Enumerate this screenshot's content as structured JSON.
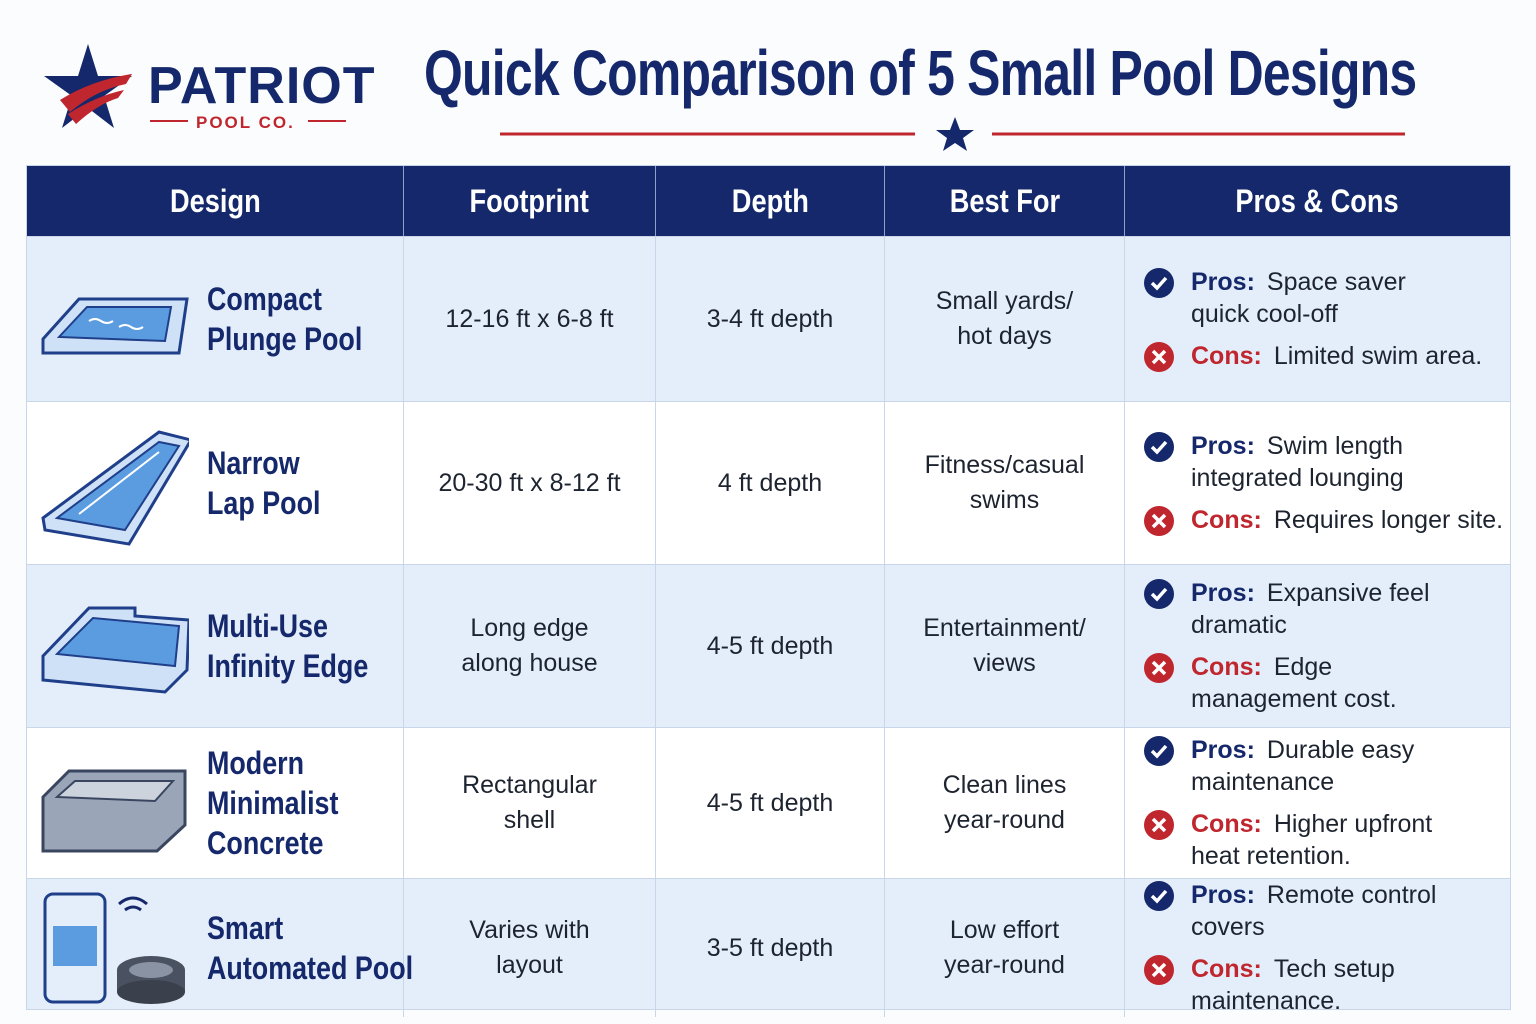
{
  "logo": {
    "name": "PATRIOT",
    "sub": "POOL CO."
  },
  "title": "Quick Comparison of 5 Small Pool Designs",
  "table": {
    "headers": [
      "Design",
      "Footprint",
      "Depth",
      "Best For",
      "Pros & Cons"
    ],
    "pros_label": "Pros:",
    "cons_label": "Cons:",
    "rows": [
      {
        "design": [
          "Compact",
          "Plunge Pool"
        ],
        "footprint": [
          "12-16 ft x 6-8 ft"
        ],
        "depth": "3-4 ft depth",
        "best_for": [
          "Small yards/",
          "hot days"
        ],
        "pros": [
          "Space saver",
          "quick cool-off"
        ],
        "cons": [
          "Limited swim area."
        ]
      },
      {
        "design": [
          "Narrow",
          "Lap Pool"
        ],
        "footprint": [
          "20-30 ft x 8-12 ft"
        ],
        "depth": "4 ft depth",
        "best_for": [
          "Fitness/casual",
          "swims"
        ],
        "pros": [
          "Swim length",
          "integrated lounging"
        ],
        "cons": [
          "Requires longer site."
        ]
      },
      {
        "design": [
          "Multi-Use",
          "Infinity Edge"
        ],
        "footprint": [
          "Long edge",
          "along house"
        ],
        "depth": "4-5 ft depth",
        "best_for": [
          "Entertainment/",
          "views"
        ],
        "pros": [
          "Expansive feel",
          "dramatic"
        ],
        "cons": [
          "Edge",
          "management cost."
        ]
      },
      {
        "design": [
          "Modern",
          "Minimalist",
          "Concrete"
        ],
        "footprint": [
          "Rectangular",
          "shell"
        ],
        "depth": "4-5 ft depth",
        "best_for": [
          "Clean lines",
          "year-round"
        ],
        "pros": [
          "Durable easy",
          "maintenance"
        ],
        "cons": [
          "Higher upfront",
          "heat retention."
        ]
      },
      {
        "design": [
          "Smart",
          "Automated Pool"
        ],
        "footprint": [
          "Varies with",
          "layout"
        ],
        "depth": "3-5 ft depth",
        "best_for": [
          "Low effort",
          "year-round"
        ],
        "pros": [
          "Remote control",
          "covers"
        ],
        "cons": [
          "Tech setup",
          "maintenance."
        ]
      }
    ]
  }
}
